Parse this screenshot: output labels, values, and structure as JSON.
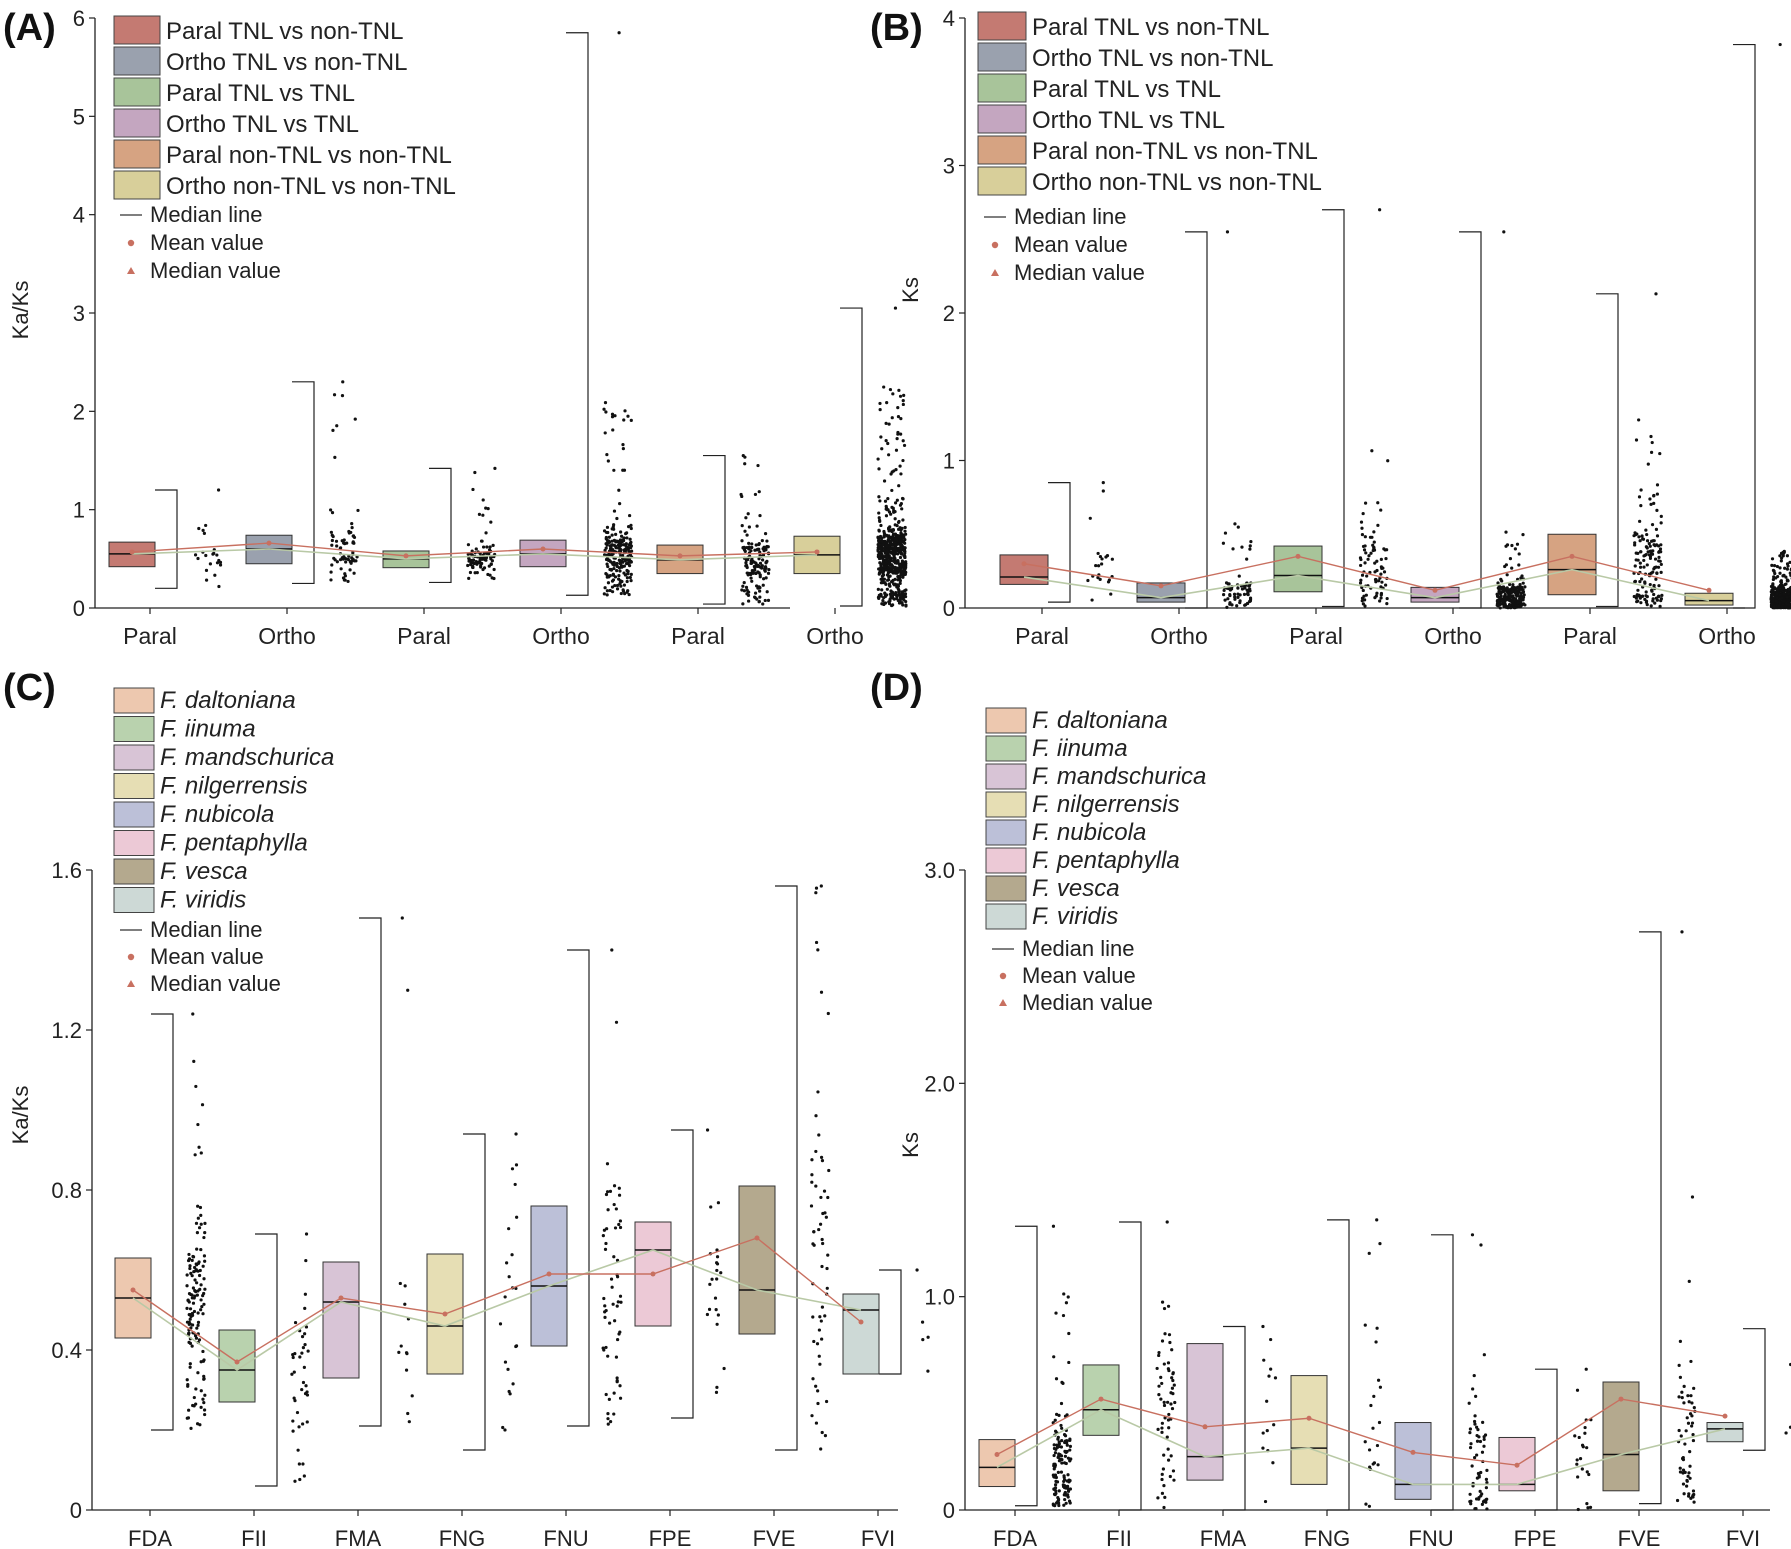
{
  "colors": {
    "paral_tnl_non": "#c47a72",
    "ortho_tnl_non": "#9aa1ae",
    "paral_tnl_tnl": "#a8c49a",
    "ortho_tnl_tnl": "#c4a6c0",
    "paral_non_non": "#d6a382",
    "ortho_non_non": "#d8cf9a",
    "mean_line": "#c87060",
    "median_line": "#b9c9a6",
    "point": "#111111",
    "fda": "#edc8af",
    "fii": "#b9d2ae",
    "fma": "#d8c4d6",
    "fng": "#e6deb4",
    "fnu": "#bcc0d8",
    "fpe": "#ecc9d6",
    "fve": "#b4a98e",
    "fvi": "#cdd9d6"
  },
  "chart_data": [
    {
      "id": "A",
      "panel_label": "(A)",
      "type": "box",
      "ylabel": "Ka/Ks",
      "ylim": [
        0,
        6
      ],
      "yticks": [
        "0",
        "1",
        "2",
        "3",
        "4",
        "5",
        "6"
      ],
      "categories": [
        "Paral",
        "Ortho",
        "Paral",
        "Ortho",
        "Paral",
        "Ortho"
      ],
      "legend": [
        {
          "label": "Paral TNL vs non-TNL",
          "color_key": "paral_tnl_non"
        },
        {
          "label": "Ortho TNL vs non-TNL",
          "color_key": "ortho_tnl_non"
        },
        {
          "label": "Paral TNL vs TNL",
          "color_key": "paral_tnl_tnl"
        },
        {
          "label": "Ortho TNL vs TNL",
          "color_key": "ortho_tnl_tnl"
        },
        {
          "label": "Paral non-TNL vs non-TNL",
          "color_key": "paral_non_non"
        },
        {
          "label": "Ortho non-TNL vs non-TNL",
          "color_key": "ortho_non_non"
        }
      ],
      "legend_extra": [
        "Median line",
        "Mean value",
        "Median value"
      ],
      "boxes": [
        {
          "q1": 0.42,
          "median": 0.55,
          "q3": 0.67,
          "wlo": 0.2,
          "whi": 1.2,
          "mean": 0.57,
          "color_key": "paral_tnl_non"
        },
        {
          "q1": 0.45,
          "median": 0.6,
          "q3": 0.74,
          "wlo": 0.25,
          "whi": 2.3,
          "mean": 0.66,
          "color_key": "ortho_tnl_non"
        },
        {
          "q1": 0.41,
          "median": 0.5,
          "q3": 0.58,
          "wlo": 0.26,
          "whi": 1.42,
          "mean": 0.53,
          "color_key": "paral_tnl_tnl"
        },
        {
          "q1": 0.42,
          "median": 0.55,
          "q3": 0.69,
          "wlo": 0.13,
          "whi": 5.85,
          "mean": 0.6,
          "color_key": "ortho_tnl_tnl"
        },
        {
          "q1": 0.35,
          "median": 0.49,
          "q3": 0.64,
          "wlo": 0.04,
          "whi": 1.55,
          "mean": 0.53,
          "color_key": "paral_non_non"
        },
        {
          "q1": 0.35,
          "median": 0.54,
          "q3": 0.73,
          "wlo": 0.02,
          "whi": 3.05,
          "mean": 0.57,
          "color_key": "ortho_non_non"
        }
      ],
      "scatter_counts": [
        22,
        70,
        85,
        230,
        150,
        600
      ],
      "scatter_max": [
        1.2,
        2.3,
        1.42,
        5.85,
        1.55,
        3.05
      ]
    },
    {
      "id": "B",
      "panel_label": "(B)",
      "type": "box",
      "ylabel": "Ks",
      "ylim": [
        0,
        4
      ],
      "yticks": [
        "0",
        "1",
        "2",
        "3",
        "4"
      ],
      "categories": [
        "Paral",
        "Ortho",
        "Paral",
        "Ortho",
        "Paral",
        "Ortho"
      ],
      "legend": [
        {
          "label": "Paral TNL vs non-TNL",
          "color_key": "paral_tnl_non"
        },
        {
          "label": "Ortho TNL vs non-TNL",
          "color_key": "ortho_tnl_non"
        },
        {
          "label": "Paral TNL vs TNL",
          "color_key": "paral_tnl_tnl"
        },
        {
          "label": "Ortho TNL vs TNL",
          "color_key": "ortho_tnl_tnl"
        },
        {
          "label": "Paral non-TNL vs non-TNL",
          "color_key": "paral_non_non"
        },
        {
          "label": "Ortho non-TNL vs non-TNL",
          "color_key": "ortho_non_non"
        }
      ],
      "legend_extra": [
        "Median line",
        "Mean value",
        "Median value"
      ],
      "boxes": [
        {
          "q1": 0.16,
          "median": 0.21,
          "q3": 0.36,
          "wlo": 0.04,
          "whi": 0.85,
          "mean": 0.3,
          "color_key": "paral_tnl_non"
        },
        {
          "q1": 0.04,
          "median": 0.07,
          "q3": 0.17,
          "wlo": 0.0,
          "whi": 2.55,
          "mean": 0.15,
          "color_key": "ortho_tnl_non"
        },
        {
          "q1": 0.11,
          "median": 0.22,
          "q3": 0.42,
          "wlo": 0.01,
          "whi": 2.7,
          "mean": 0.35,
          "color_key": "paral_tnl_tnl"
        },
        {
          "q1": 0.04,
          "median": 0.07,
          "q3": 0.14,
          "wlo": 0.0,
          "whi": 2.55,
          "mean": 0.12,
          "color_key": "ortho_tnl_tnl"
        },
        {
          "q1": 0.09,
          "median": 0.26,
          "q3": 0.5,
          "wlo": 0.01,
          "whi": 2.13,
          "mean": 0.35,
          "color_key": "paral_non_non"
        },
        {
          "q1": 0.02,
          "median": 0.05,
          "q3": 0.1,
          "wlo": 0.0,
          "whi": 3.82,
          "mean": 0.12,
          "color_key": "ortho_non_non"
        }
      ],
      "scatter_counts": [
        22,
        70,
        85,
        230,
        150,
        600
      ],
      "scatter_max": [
        0.85,
        2.55,
        2.7,
        2.55,
        2.13,
        3.82
      ]
    },
    {
      "id": "C",
      "panel_label": "(C)",
      "type": "box",
      "ylabel": "Ka/Ks",
      "ylim": [
        0,
        1.6
      ],
      "yticks": [
        "0",
        "0.4",
        "0.8",
        "1.2",
        "1.6"
      ],
      "categories": [
        "FDA",
        "FII",
        "FMA",
        "FNG",
        "FNU",
        "FPE",
        "FVE",
        "FVI"
      ],
      "legend": [
        {
          "label": "F. daltoniana",
          "color_key": "fda"
        },
        {
          "label": "F. iinuma",
          "color_key": "fii"
        },
        {
          "label": "F. mandschurica",
          "color_key": "fma"
        },
        {
          "label": "F. nilgerrensis",
          "color_key": "fng"
        },
        {
          "label": "F. nubicola",
          "color_key": "fnu"
        },
        {
          "label": "F. pentaphylla",
          "color_key": "fpe"
        },
        {
          "label": "F. vesca",
          "color_key": "fve"
        },
        {
          "label": "F. viridis",
          "color_key": "fvi"
        }
      ],
      "legend_extra": [
        "Median line",
        "Mean value",
        "Median value"
      ],
      "boxes": [
        {
          "q1": 0.43,
          "median": 0.53,
          "q3": 0.63,
          "wlo": 0.2,
          "whi": 1.24,
          "mean": 0.55,
          "color_key": "fda"
        },
        {
          "q1": 0.27,
          "median": 0.35,
          "q3": 0.45,
          "wlo": 0.06,
          "whi": 0.69,
          "mean": 0.37,
          "color_key": "fii"
        },
        {
          "q1": 0.33,
          "median": 0.52,
          "q3": 0.62,
          "wlo": 0.21,
          "whi": 1.48,
          "mean": 0.53,
          "color_key": "fma"
        },
        {
          "q1": 0.34,
          "median": 0.46,
          "q3": 0.64,
          "wlo": 0.15,
          "whi": 0.94,
          "mean": 0.49,
          "color_key": "fng"
        },
        {
          "q1": 0.41,
          "median": 0.56,
          "q3": 0.76,
          "wlo": 0.21,
          "whi": 1.4,
          "mean": 0.59,
          "color_key": "fnu"
        },
        {
          "q1": 0.46,
          "median": 0.65,
          "q3": 0.72,
          "wlo": 0.23,
          "whi": 0.95,
          "mean": 0.59,
          "color_key": "fpe"
        },
        {
          "q1": 0.44,
          "median": 0.55,
          "q3": 0.81,
          "wlo": 0.15,
          "whi": 1.56,
          "mean": 0.68,
          "color_key": "fve"
        },
        {
          "q1": 0.34,
          "median": 0.5,
          "q3": 0.54,
          "wlo": 0.34,
          "whi": 0.6,
          "mean": 0.47,
          "color_key": "fvi"
        }
      ],
      "scatter_counts": [
        140,
        40,
        14,
        22,
        60,
        22,
        60,
        5
      ],
      "scatter_max": [
        1.24,
        0.69,
        1.48,
        0.94,
        1.4,
        0.95,
        1.56,
        0.6
      ]
    },
    {
      "id": "D",
      "panel_label": "(D)",
      "type": "box",
      "ylabel": "Ks",
      "ylim": [
        0,
        3.0
      ],
      "yticks": [
        "0",
        "1.0",
        "2.0",
        "3.0"
      ],
      "categories": [
        "FDA",
        "FII",
        "FMA",
        "FNG",
        "FNU",
        "FPE",
        "FVE",
        "FVI"
      ],
      "legend": [
        {
          "label": "F. daltoniana",
          "color_key": "fda"
        },
        {
          "label": "F. iinuma",
          "color_key": "fii"
        },
        {
          "label": "F. mandschurica",
          "color_key": "fma"
        },
        {
          "label": "F. nilgerrensis",
          "color_key": "fng"
        },
        {
          "label": "F. nubicola",
          "color_key": "fnu"
        },
        {
          "label": "F. pentaphylla",
          "color_key": "fpe"
        },
        {
          "label": "F. vesca",
          "color_key": "fve"
        },
        {
          "label": "F. viridis",
          "color_key": "fvi"
        }
      ],
      "legend_extra": [
        "Median line",
        "Mean value",
        "Median value"
      ],
      "boxes": [
        {
          "q1": 0.11,
          "median": 0.2,
          "q3": 0.33,
          "wlo": 0.02,
          "whi": 1.33,
          "mean": 0.26,
          "color_key": "fda"
        },
        {
          "q1": 0.35,
          "median": 0.47,
          "q3": 0.68,
          "wlo": 0.0,
          "whi": 1.35,
          "mean": 0.52,
          "color_key": "fii"
        },
        {
          "q1": 0.14,
          "median": 0.25,
          "q3": 0.78,
          "wlo": 0.0,
          "whi": 0.86,
          "mean": 0.39,
          "color_key": "fma"
        },
        {
          "q1": 0.12,
          "median": 0.29,
          "q3": 0.63,
          "wlo": 0.0,
          "whi": 1.36,
          "mean": 0.43,
          "color_key": "fng"
        },
        {
          "q1": 0.05,
          "median": 0.12,
          "q3": 0.41,
          "wlo": 0.0,
          "whi": 1.29,
          "mean": 0.27,
          "color_key": "fnu"
        },
        {
          "q1": 0.09,
          "median": 0.12,
          "q3": 0.34,
          "wlo": 0.0,
          "whi": 0.66,
          "mean": 0.21,
          "color_key": "fpe"
        },
        {
          "q1": 0.09,
          "median": 0.26,
          "q3": 0.6,
          "wlo": 0.03,
          "whi": 2.71,
          "mean": 0.52,
          "color_key": "fve"
        },
        {
          "q1": 0.32,
          "median": 0.38,
          "q3": 0.41,
          "wlo": 0.28,
          "whi": 0.85,
          "mean": 0.44,
          "color_key": "fvi"
        }
      ],
      "scatter_counts": [
        140,
        60,
        14,
        22,
        60,
        22,
        60,
        5
      ],
      "scatter_max": [
        1.33,
        1.35,
        0.86,
        1.36,
        1.29,
        0.66,
        2.71,
        0.85
      ]
    }
  ]
}
